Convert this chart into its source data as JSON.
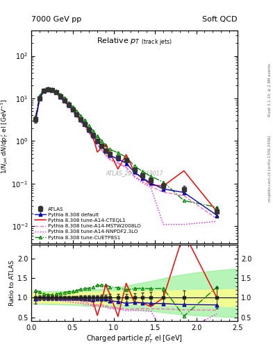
{
  "title_top_left": "7000 GeV pp",
  "title_top_right": "Soft QCD",
  "main_title": "Relative $p_T$ (track jets)",
  "ylabel_main": "1/N$_{jet}$ dN/dp$^{r}_{T}$ el [GeV$^{-1}$]",
  "ylabel_ratio": "Ratio to ATLAS",
  "xlabel": "Charged particle $p^{r}_{T}$ el [GeV]",
  "watermark": "ATLAS_2011_I919017",
  "right_label_top": "Rivet 3.1.10, ≥ 2.9M events",
  "right_label_bottom": "mcplots.cern.ch [arXiv:1306.3436]",
  "xlim": [
    0.0,
    2.5
  ],
  "ylim_main": [
    0.004,
    400
  ],
  "ylim_ratio": [
    0.4,
    2.35
  ],
  "atlas_x": [
    0.05,
    0.1,
    0.15,
    0.2,
    0.25,
    0.3,
    0.35,
    0.4,
    0.45,
    0.5,
    0.55,
    0.6,
    0.65,
    0.7,
    0.75,
    0.8,
    0.85,
    0.9,
    0.95,
    1.05,
    1.15,
    1.25,
    1.35,
    1.45,
    1.6,
    1.85,
    2.25
  ],
  "atlas_y": [
    3.2,
    10.0,
    15.0,
    16.2,
    15.5,
    14.0,
    11.0,
    9.0,
    7.0,
    5.5,
    4.2,
    3.2,
    2.5,
    1.85,
    1.35,
    1.0,
    0.78,
    0.6,
    0.5,
    0.42,
    0.35,
    0.21,
    0.155,
    0.12,
    0.088,
    0.075,
    0.022
  ],
  "atlas_yerr": [
    0.5,
    0.7,
    0.9,
    0.9,
    0.85,
    0.75,
    0.55,
    0.45,
    0.35,
    0.28,
    0.22,
    0.18,
    0.14,
    0.11,
    0.09,
    0.07,
    0.06,
    0.05,
    0.045,
    0.04,
    0.035,
    0.025,
    0.02,
    0.018,
    0.015,
    0.014,
    0.006
  ],
  "py_def_x": [
    0.05,
    0.1,
    0.15,
    0.2,
    0.25,
    0.3,
    0.35,
    0.4,
    0.45,
    0.5,
    0.55,
    0.6,
    0.65,
    0.7,
    0.75,
    0.8,
    0.85,
    0.9,
    0.95,
    1.05,
    1.15,
    1.25,
    1.35,
    1.45,
    1.6,
    1.85,
    2.25
  ],
  "py_def_y": [
    3.1,
    10.1,
    15.1,
    16.1,
    15.6,
    13.9,
    10.9,
    8.9,
    6.95,
    5.45,
    4.15,
    3.15,
    2.45,
    1.8,
    1.3,
    0.97,
    0.76,
    0.58,
    0.46,
    0.38,
    0.3,
    0.185,
    0.135,
    0.103,
    0.075,
    0.062,
    0.018
  ],
  "py_cteq_x": [
    0.05,
    0.1,
    0.15,
    0.2,
    0.25,
    0.3,
    0.35,
    0.4,
    0.45,
    0.5,
    0.55,
    0.6,
    0.65,
    0.7,
    0.75,
    0.8,
    0.85,
    0.9,
    0.95,
    1.05,
    1.15,
    1.25,
    1.35,
    1.45,
    1.6,
    1.85,
    2.25
  ],
  "py_cteq_y": [
    3.0,
    9.9,
    15.0,
    16.0,
    15.4,
    13.8,
    10.8,
    8.8,
    6.85,
    5.35,
    4.05,
    3.05,
    2.35,
    1.7,
    1.2,
    0.55,
    0.7,
    0.8,
    0.55,
    0.22,
    0.48,
    0.185,
    0.135,
    0.093,
    0.088,
    0.2,
    0.022
  ],
  "py_mstw_x": [
    0.05,
    0.1,
    0.15,
    0.2,
    0.25,
    0.3,
    0.35,
    0.4,
    0.45,
    0.5,
    0.55,
    0.6,
    0.65,
    0.7,
    0.75,
    0.8,
    0.85,
    0.9,
    0.95,
    1.05,
    1.15,
    1.25,
    1.35,
    1.45,
    1.6,
    1.85,
    2.25
  ],
  "py_mstw_y": [
    2.9,
    9.7,
    14.8,
    15.8,
    15.2,
    13.5,
    10.5,
    8.5,
    6.6,
    5.1,
    3.9,
    2.9,
    2.2,
    1.6,
    1.1,
    0.82,
    0.64,
    0.48,
    0.38,
    0.31,
    0.245,
    0.15,
    0.112,
    0.086,
    0.063,
    0.052,
    0.015
  ],
  "py_nnpdf_x": [
    0.05,
    0.1,
    0.15,
    0.2,
    0.25,
    0.3,
    0.35,
    0.4,
    0.45,
    0.5,
    0.55,
    0.6,
    0.65,
    0.7,
    0.75,
    0.8,
    0.85,
    0.9,
    0.95,
    1.05,
    1.15,
    1.25,
    1.35,
    1.45,
    1.6,
    1.85,
    2.25
  ],
  "py_nnpdf_y": [
    2.8,
    9.5,
    14.5,
    15.5,
    14.8,
    13.2,
    10.2,
    8.2,
    6.3,
    4.85,
    3.65,
    2.75,
    2.1,
    1.52,
    1.06,
    0.8,
    0.61,
    0.46,
    0.36,
    0.3,
    0.235,
    0.142,
    0.104,
    0.079,
    0.011,
    0.011,
    0.013
  ],
  "py_cuetp_x": [
    0.05,
    0.1,
    0.15,
    0.2,
    0.25,
    0.3,
    0.35,
    0.4,
    0.45,
    0.5,
    0.55,
    0.6,
    0.65,
    0.7,
    0.75,
    0.8,
    0.85,
    0.9,
    0.95,
    1.05,
    1.15,
    1.25,
    1.35,
    1.45,
    1.6,
    1.85,
    2.25
  ],
  "py_cuetp_y": [
    3.8,
    11.5,
    16.5,
    17.5,
    16.8,
    15.3,
    12.3,
    10.2,
    8.1,
    6.4,
    5.0,
    3.9,
    3.1,
    2.3,
    1.72,
    1.32,
    1.03,
    0.8,
    0.64,
    0.53,
    0.42,
    0.26,
    0.192,
    0.148,
    0.109,
    0.04,
    0.028
  ],
  "color_atlas": "#333333",
  "color_default": "#0000cc",
  "color_cteq": "#ff0000",
  "color_mstw": "#ff69b4",
  "color_nnpdf": "#ff00ff",
  "color_cuetp": "#008800",
  "band_yellow": "#ffff88",
  "band_green": "#88ee88"
}
